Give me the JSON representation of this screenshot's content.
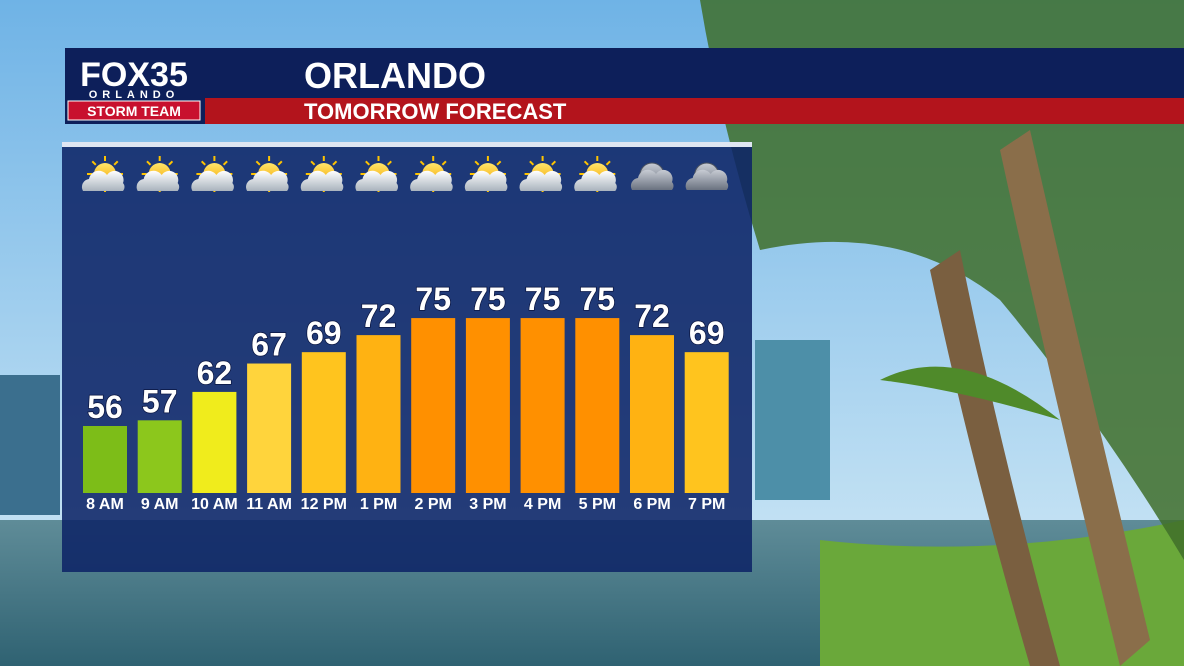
{
  "logo": {
    "brand": "FOX35",
    "city": "ORLANDO",
    "team": "STORM TEAM"
  },
  "header": {
    "title": "ORLANDO",
    "subtitle": "TOMORROW FORECAST"
  },
  "chart_data": {
    "type": "bar",
    "categories": [
      "8 AM",
      "9 AM",
      "10 AM",
      "11 AM",
      "12 PM",
      "1 PM",
      "2 PM",
      "3 PM",
      "4 PM",
      "5 PM",
      "6 PM",
      "7 PM"
    ],
    "values": [
      56,
      57,
      62,
      67,
      69,
      72,
      75,
      75,
      75,
      75,
      72,
      69
    ],
    "colors": [
      "#7dbd18",
      "#8cc71c",
      "#f0ec1c",
      "#ffd43c",
      "#ffc41e",
      "#ffb212",
      "#ff9000",
      "#ff9000",
      "#ff9000",
      "#ff9000",
      "#ffb212",
      "#ffc41e"
    ]
  }
}
